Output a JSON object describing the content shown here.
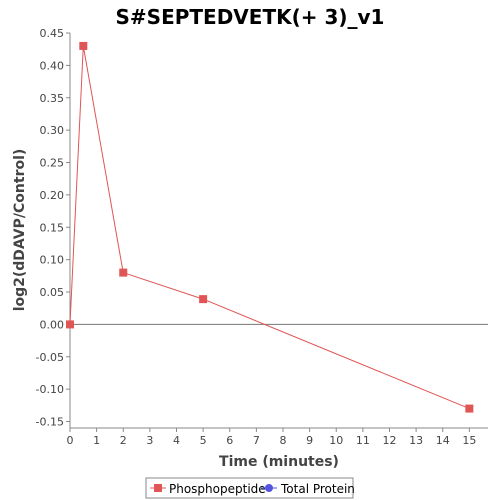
{
  "chart_data": {
    "type": "line",
    "title": "S#SEPTEDVETK(+ 3)_v1",
    "xlabel": "Time (minutes)",
    "ylabel": "log2(dDAVP/Control)",
    "xlim": [
      0,
      15.7
    ],
    "ylim": [
      -0.16,
      0.45
    ],
    "xticks": [
      0,
      1,
      2,
      3,
      4,
      5,
      6,
      7,
      8,
      9,
      10,
      11,
      12,
      13,
      14,
      15
    ],
    "yticks": [
      -0.15,
      -0.1,
      -0.05,
      0.0,
      0.05,
      0.1,
      0.15,
      0.2,
      0.25,
      0.3,
      0.35,
      0.4,
      0.45
    ],
    "ytick_labels": [
      "-0.15",
      "-0.10",
      "-0.05",
      "0.00",
      "0.05",
      "0.10",
      "0.15",
      "0.20",
      "0.25",
      "0.30",
      "0.35",
      "0.40",
      "0.45"
    ],
    "zero_line": true,
    "series": [
      {
        "name": "Phosphopeptide",
        "color": "#e05555",
        "marker": "square",
        "x": [
          0,
          0.5,
          2,
          5,
          15
        ],
        "y": [
          0.0,
          0.43,
          0.08,
          0.039,
          -0.13
        ]
      },
      {
        "name": "Total Protein",
        "color": "#5555e0",
        "marker": "circle",
        "x": [],
        "y": []
      }
    ],
    "legend_position": "bottom-center"
  }
}
